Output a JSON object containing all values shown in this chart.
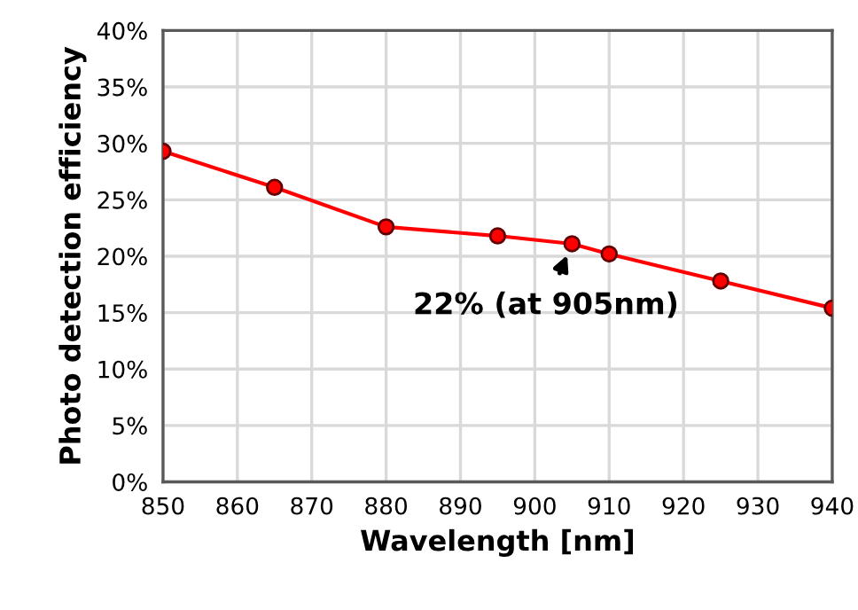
{
  "chart_data": {
    "type": "line",
    "xlabel": "Wavelength [nm]",
    "ylabel": "Photo detection efficiency",
    "x": [
      850,
      865,
      880,
      895,
      905,
      910,
      925,
      940
    ],
    "series": [
      {
        "color": "#ff0000",
        "values": [
          29.3,
          26.1,
          22.6,
          21.8,
          21.1,
          20.2,
          17.8,
          15.4
        ]
      }
    ],
    "marker": "circle",
    "line_style": "solid",
    "grid": true,
    "xlim": [
      850,
      940
    ],
    "xticks": [
      850,
      860,
      870,
      880,
      890,
      900,
      910,
      920,
      930,
      940
    ],
    "ylim": [
      0,
      40
    ],
    "yticks": [
      {
        "value": 0,
        "label": "0%"
      },
      {
        "value": 5,
        "label": "5%"
      },
      {
        "value": 10,
        "label": "10%"
      },
      {
        "value": 15,
        "label": "15%"
      },
      {
        "value": 20,
        "label": "20%"
      },
      {
        "value": 25,
        "label": "25%"
      },
      {
        "value": 30,
        "label": "30%"
      },
      {
        "value": 35,
        "label": "35%"
      },
      {
        "value": 40,
        "label": "40%"
      }
    ],
    "annotations": [
      {
        "text": "22% (at 905nm)",
        "x": 905,
        "y": 21.1
      }
    ]
  }
}
